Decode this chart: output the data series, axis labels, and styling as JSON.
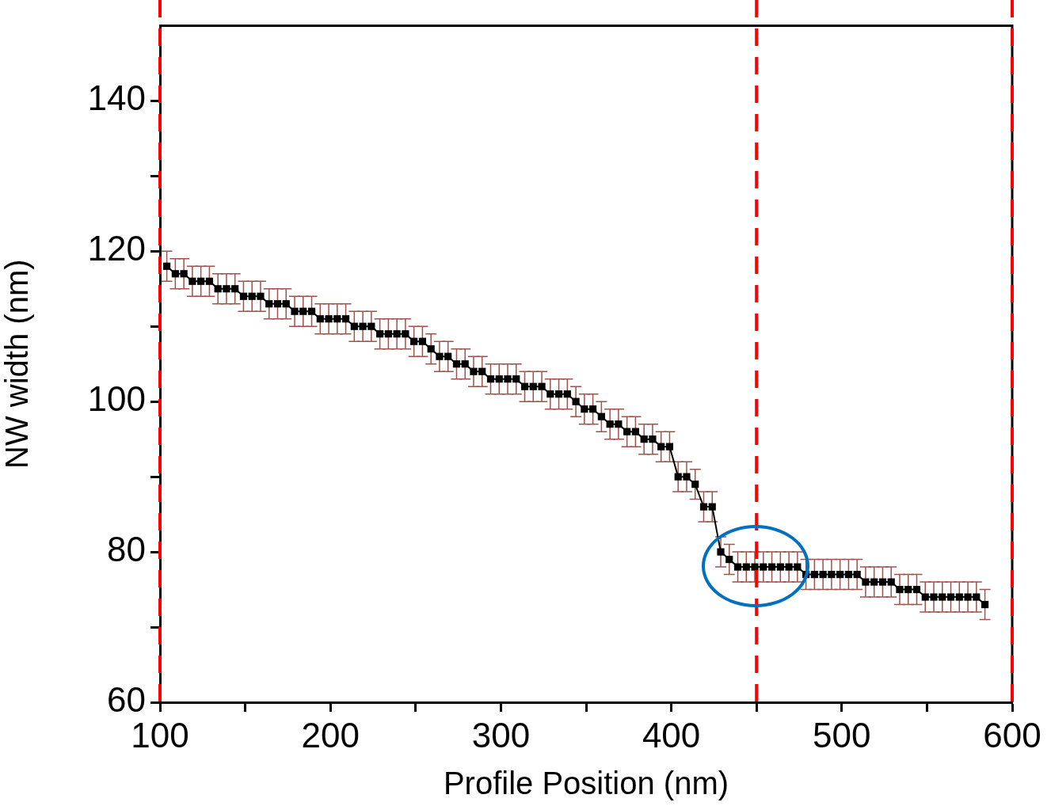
{
  "chart_data": {
    "type": "line",
    "xlabel": "Profile Position (nm)",
    "ylabel": "NW width (nm)",
    "x": [
      104,
      109,
      114,
      119,
      124,
      129,
      134,
      139,
      144,
      149,
      154,
      159,
      164,
      169,
      174,
      179,
      184,
      189,
      194,
      199,
      204,
      209,
      214,
      219,
      224,
      229,
      234,
      239,
      244,
      249,
      254,
      259,
      264,
      269,
      274,
      279,
      284,
      289,
      294,
      299,
      304,
      309,
      314,
      319,
      324,
      329,
      334,
      339,
      344,
      349,
      354,
      359,
      364,
      369,
      374,
      379,
      384,
      389,
      394,
      399,
      404,
      409,
      414,
      419,
      424,
      429,
      434,
      439,
      444,
      449,
      454,
      459,
      464,
      469,
      474,
      479,
      484,
      489,
      494,
      499,
      504,
      509,
      514,
      519,
      524,
      529,
      534,
      539,
      544,
      549,
      554,
      559,
      564,
      569,
      574,
      579,
      584
    ],
    "series": [
      {
        "color": "#000000",
        "values": [
          118,
          117,
          117,
          116,
          116,
          116,
          115,
          115,
          115,
          114,
          114,
          114,
          113,
          113,
          113,
          112,
          112,
          112,
          111,
          111,
          111,
          111,
          110,
          110,
          110,
          109,
          109,
          109,
          109,
          108,
          108,
          107,
          106,
          106,
          105,
          105,
          104,
          104,
          103,
          103,
          103,
          103,
          102,
          102,
          102,
          101,
          101,
          101,
          100,
          99,
          99,
          98,
          97,
          97,
          96,
          96,
          95,
          95,
          94,
          94,
          90,
          90,
          89,
          86,
          86,
          80,
          79,
          78,
          78,
          78,
          78,
          78,
          78,
          78,
          78,
          77,
          77,
          77,
          77,
          77,
          77,
          77,
          76,
          76,
          76,
          76,
          75,
          75,
          75,
          74,
          74,
          74,
          74,
          74,
          74,
          74,
          73
        ],
        "errors": [
          2,
          2,
          2,
          2,
          2,
          2,
          2,
          2,
          2,
          2,
          2,
          2,
          2,
          2,
          2,
          2,
          2,
          2,
          2,
          2,
          2,
          2,
          2,
          2,
          2,
          2,
          2,
          2,
          2,
          2,
          2,
          2,
          2,
          2,
          2,
          2,
          2,
          2,
          2,
          2,
          2,
          2,
          2,
          2,
          2,
          2,
          2,
          2,
          2,
          2,
          2,
          2,
          2,
          2,
          2,
          2,
          2,
          2,
          2,
          2,
          2,
          2,
          2,
          2,
          2,
          2,
          2,
          2,
          2,
          2,
          2,
          2,
          2,
          2,
          2,
          2,
          2,
          2,
          2,
          2,
          2,
          2,
          2,
          2,
          2,
          2,
          2,
          2,
          2,
          2,
          2,
          2,
          2,
          2,
          2,
          2,
          2
        ]
      }
    ],
    "xlim": [
      100,
      600
    ],
    "xticks": [
      100,
      {
        "value": 150,
        "label": null
      },
      200,
      {
        "value": 250,
        "label": null
      },
      300,
      {
        "value": 350,
        "label": null
      },
      400,
      {
        "value": 450,
        "label": null
      },
      500,
      {
        "value": 550,
        "label": null
      },
      600
    ],
    "ylim": [
      60,
      150
    ],
    "yticks": [
      60,
      {
        "value": 70,
        "label": null
      },
      80,
      {
        "value": 90,
        "label": null
      },
      100,
      {
        "value": 110,
        "label": null
      },
      120,
      {
        "value": 130,
        "label": null
      },
      140
    ],
    "ref_lines": [
      {
        "axis": "x",
        "value": 100,
        "color": "#ff0000",
        "line_style": "dashed"
      },
      {
        "axis": "x",
        "value": 450,
        "color": "#ff0000",
        "line_style": "dashed"
      },
      {
        "axis": "x",
        "value": 600,
        "color": "#ff0000",
        "line_style": "dashed"
      }
    ],
    "grid": false,
    "legend": false,
    "marker": "square",
    "line_style": "solid"
  }
}
